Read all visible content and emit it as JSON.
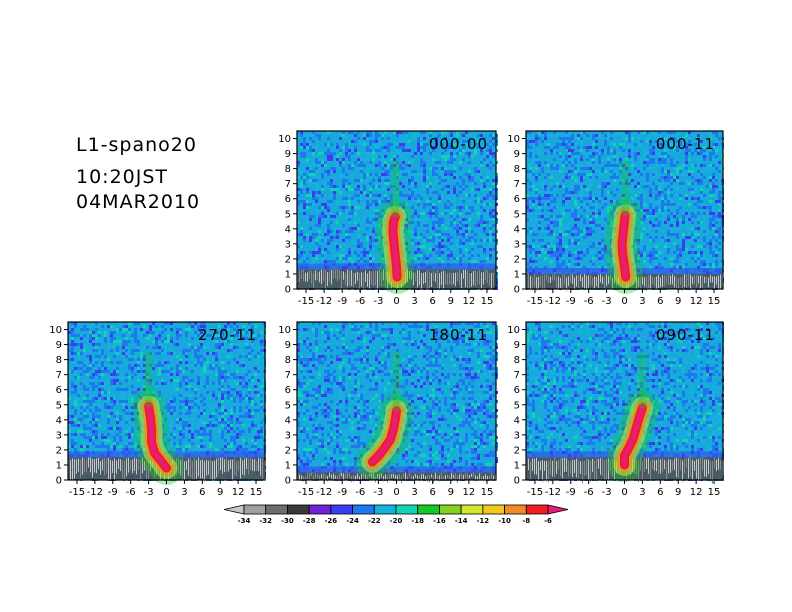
{
  "header": {
    "title": "L1-spano20",
    "time": "10:20JST",
    "date": "04MAR2010"
  },
  "colorbar": {
    "levels": [
      "-34",
      "-32",
      "-30",
      "-28",
      "-26",
      "-24",
      "-22",
      "-20",
      "-18",
      "-16",
      "-14",
      "-12",
      "-10",
      "-8",
      "-6"
    ],
    "colors": [
      "#c8c8c8",
      "#a0a0a0",
      "#6e6e6e",
      "#3a3a3a",
      "#7020d8",
      "#3c3cf0",
      "#1e78f0",
      "#14b4d8",
      "#14d2b4",
      "#14c828",
      "#82d21e",
      "#d2e632",
      "#f0c81e",
      "#f08c28",
      "#f01e1e",
      "#e61e78"
    ]
  },
  "chart_data": [
    {
      "type": "heatmap",
      "label": "000-00",
      "xticks": [
        "-15",
        "-12",
        "-9",
        "-6",
        "-3",
        "0",
        "3",
        "6",
        "9",
        "12",
        "15"
      ],
      "yticks": [
        "0",
        "1",
        "2",
        "3",
        "4",
        "5",
        "6",
        "7",
        "8",
        "9",
        "10"
      ],
      "xlim": [
        -16.5,
        16.5
      ],
      "ylim": [
        0,
        10.5
      ],
      "core_x": [
        0.1,
        0.0,
        -0.2,
        -0.4,
        -0.6,
        -0.5,
        -0.2
      ],
      "core_y": [
        0.8,
        1.5,
        2.2,
        3.0,
        3.8,
        4.5,
        4.8
      ],
      "low_signal_top": 1.3
    },
    {
      "type": "heatmap",
      "label": "000-11",
      "xticks": [
        "-15",
        "-12",
        "-9",
        "-6",
        "-3",
        "0",
        "3",
        "6",
        "9",
        "12",
        "15"
      ],
      "yticks": [
        "0",
        "1",
        "2",
        "3",
        "4",
        "5",
        "6",
        "7",
        "8",
        "9",
        "10"
      ],
      "xlim": [
        -16.5,
        16.5
      ],
      "ylim": [
        0,
        10.5
      ],
      "core_x": [
        0.2,
        0.0,
        -0.3,
        -0.4,
        -0.2,
        0.0,
        0.1
      ],
      "core_y": [
        0.8,
        1.5,
        2.3,
        3.0,
        3.8,
        4.5,
        4.9
      ],
      "low_signal_top": 1.0
    },
    {
      "type": "heatmap",
      "label": "270-11",
      "xticks": [
        "-15",
        "-12",
        "-9",
        "-6",
        "-3",
        "0",
        "3",
        "6",
        "9",
        "12",
        "15"
      ],
      "yticks": [
        "0",
        "1",
        "2",
        "3",
        "4",
        "5",
        "6",
        "7",
        "8",
        "9",
        "10"
      ],
      "xlim": [
        -16.5,
        16.5
      ],
      "ylim": [
        0,
        10.5
      ],
      "core_x": [
        0.0,
        -1.0,
        -2.0,
        -2.5,
        -2.5,
        -2.7,
        -3.0
      ],
      "core_y": [
        0.8,
        1.3,
        1.8,
        2.5,
        3.3,
        4.2,
        4.9
      ],
      "low_signal_top": 1.5
    },
    {
      "type": "heatmap",
      "label": "180-11",
      "xticks": [
        "-15",
        "-12",
        "-9",
        "-6",
        "-3",
        "0",
        "3",
        "6",
        "9",
        "12",
        "15"
      ],
      "yticks": [
        "0",
        "1",
        "2",
        "3",
        "4",
        "5",
        "6",
        "7",
        "8",
        "9",
        "10"
      ],
      "xlim": [
        -16.5,
        16.5
      ],
      "ylim": [
        0,
        10.5
      ],
      "core_x": [
        -4.0,
        -3.0,
        -2.0,
        -1.0,
        -0.5,
        -0.2,
        0.0
      ],
      "core_y": [
        1.2,
        1.6,
        2.1,
        2.7,
        3.4,
        4.0,
        4.6
      ],
      "low_signal_top": 0.5
    },
    {
      "type": "heatmap",
      "label": "090-11",
      "xticks": [
        "-15",
        "-12",
        "-9",
        "-6",
        "-3",
        "0",
        "3",
        "6",
        "9",
        "12",
        "15"
      ],
      "yticks": [
        "0",
        "1",
        "2",
        "3",
        "4",
        "5",
        "6",
        "7",
        "8",
        "9",
        "10"
      ],
      "xlim": [
        -16.5,
        16.5
      ],
      "ylim": [
        0,
        10.5
      ],
      "core_x": [
        0.0,
        0.0,
        0.8,
        1.5,
        2.0,
        2.5,
        3.0
      ],
      "core_y": [
        1.0,
        1.6,
        2.2,
        2.8,
        3.5,
        4.2,
        4.8
      ],
      "low_signal_top": 1.5
    }
  ]
}
